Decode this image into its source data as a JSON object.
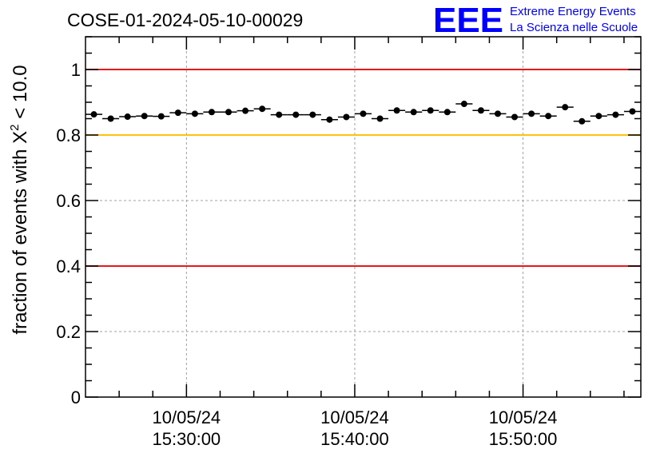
{
  "header": {
    "title": "COSE-01-2024-05-10-00029",
    "logo_text": "EEE",
    "logo_line1": "Extreme Energy Events",
    "logo_line2": "La Scienza nelle Scuole"
  },
  "chart_data": {
    "type": "scatter",
    "title": "COSE-01-2024-05-10-00029",
    "xlabel": "",
    "ylabel_parts": [
      "fraction of events with ",
      "X",
      "2",
      " < 10.0"
    ],
    "ylim": [
      0,
      1.1
    ],
    "y_ticks": [
      {
        "value": 0,
        "label": "0"
      },
      {
        "value": 0.2,
        "label": "0.2"
      },
      {
        "value": 0.4,
        "label": "0.4"
      },
      {
        "value": 0.6,
        "label": "0.6"
      },
      {
        "value": 0.8,
        "label": "0.8"
      },
      {
        "value": 1,
        "label": "1"
      }
    ],
    "xlim_minutes": [
      24,
      57
    ],
    "x_ticks": [
      {
        "minute": 30,
        "label_date": "10/05/24",
        "label_time": "15:30:00"
      },
      {
        "minute": 40,
        "label_date": "10/05/24",
        "label_time": "15:40:00"
      },
      {
        "minute": 50,
        "label_date": "10/05/24",
        "label_time": "15:50:00"
      }
    ],
    "grid": true,
    "reference_lines": [
      {
        "y": 1.0,
        "color": "#e8191c"
      },
      {
        "y": 0.8,
        "color": "#ffc20e"
      },
      {
        "y": 0.4,
        "color": "#e8191c"
      }
    ],
    "series": [
      {
        "marker_color": "#000000",
        "x": [
          24.5,
          25.5,
          26.5,
          27.5,
          28.5,
          29.5,
          30.5,
          31.5,
          32.5,
          33.5,
          34.5,
          35.5,
          36.5,
          37.5,
          38.5,
          39.5,
          40.5,
          41.5,
          42.5,
          43.5,
          44.5,
          45.5,
          46.5,
          47.5,
          48.5,
          49.5,
          50.5,
          51.5,
          52.5,
          53.5,
          54.5,
          55.5,
          56.5
        ],
        "y": [
          0.863,
          0.85,
          0.856,
          0.858,
          0.857,
          0.868,
          0.865,
          0.87,
          0.87,
          0.874,
          0.88,
          0.862,
          0.862,
          0.862,
          0.847,
          0.855,
          0.865,
          0.85,
          0.875,
          0.87,
          0.875,
          0.87,
          0.895,
          0.875,
          0.865,
          0.855,
          0.865,
          0.858,
          0.885,
          0.842,
          0.858,
          0.862,
          0.872
        ]
      }
    ]
  }
}
